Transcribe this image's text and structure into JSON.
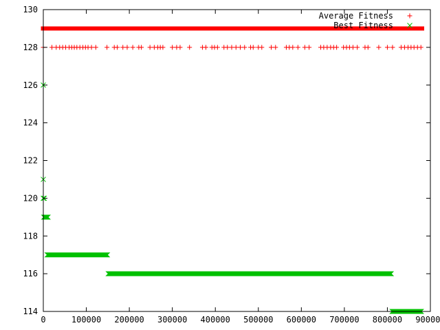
{
  "chart_data": {
    "type": "scatter",
    "title": "",
    "xlabel": "",
    "ylabel": "",
    "xlim": [
      0,
      900000
    ],
    "ylim": [
      114,
      130
    ],
    "x_ticks": [
      0,
      100000,
      200000,
      300000,
      400000,
      500000,
      600000,
      700000,
      800000,
      900000
    ],
    "x_tick_labels": [
      "0",
      "100000",
      "200000",
      "300000",
      "400000",
      "500000",
      "600000",
      "700000",
      "800000",
      "900000"
    ],
    "y_ticks": [
      114,
      116,
      118,
      120,
      122,
      124,
      126,
      128,
      130
    ],
    "y_tick_labels": [
      "114",
      "116",
      "118",
      "120",
      "122",
      "124",
      "126",
      "128",
      "130"
    ],
    "grid": false,
    "legend": "top-right",
    "series": [
      {
        "name": "Average Fitness",
        "marker": "plus",
        "color": "#ff0000",
        "bands": [
          {
            "y": 129,
            "x_from": 0,
            "x_to": 880000,
            "density": "continuous"
          }
        ],
        "points": [
          {
            "x": 0,
            "y": 128
          },
          {
            "x": 20000,
            "y": 128
          },
          {
            "x": 30000,
            "y": 128
          },
          {
            "x": 38000,
            "y": 128
          },
          {
            "x": 45000,
            "y": 128
          },
          {
            "x": 52000,
            "y": 128
          },
          {
            "x": 60000,
            "y": 128
          },
          {
            "x": 66000,
            "y": 128
          },
          {
            "x": 72000,
            "y": 128
          },
          {
            "x": 78000,
            "y": 128
          },
          {
            "x": 85000,
            "y": 128
          },
          {
            "x": 92000,
            "y": 128
          },
          {
            "x": 98000,
            "y": 128
          },
          {
            "x": 104000,
            "y": 128
          },
          {
            "x": 112000,
            "y": 128
          },
          {
            "x": 122000,
            "y": 128
          },
          {
            "x": 148000,
            "y": 128
          },
          {
            "x": 165000,
            "y": 128
          },
          {
            "x": 172000,
            "y": 128
          },
          {
            "x": 185000,
            "y": 128
          },
          {
            "x": 195000,
            "y": 128
          },
          {
            "x": 208000,
            "y": 128
          },
          {
            "x": 222000,
            "y": 128
          },
          {
            "x": 228000,
            "y": 128
          },
          {
            "x": 248000,
            "y": 128
          },
          {
            "x": 258000,
            "y": 128
          },
          {
            "x": 266000,
            "y": 128
          },
          {
            "x": 272000,
            "y": 128
          },
          {
            "x": 278000,
            "y": 128
          },
          {
            "x": 300000,
            "y": 128
          },
          {
            "x": 310000,
            "y": 128
          },
          {
            "x": 318000,
            "y": 128
          },
          {
            "x": 340000,
            "y": 128
          },
          {
            "x": 370000,
            "y": 128
          },
          {
            "x": 378000,
            "y": 128
          },
          {
            "x": 392000,
            "y": 128
          },
          {
            "x": 398000,
            "y": 128
          },
          {
            "x": 405000,
            "y": 128
          },
          {
            "x": 420000,
            "y": 128
          },
          {
            "x": 428000,
            "y": 128
          },
          {
            "x": 438000,
            "y": 128
          },
          {
            "x": 448000,
            "y": 128
          },
          {
            "x": 458000,
            "y": 128
          },
          {
            "x": 468000,
            "y": 128
          },
          {
            "x": 482000,
            "y": 128
          },
          {
            "x": 488000,
            "y": 128
          },
          {
            "x": 500000,
            "y": 128
          },
          {
            "x": 508000,
            "y": 128
          },
          {
            "x": 530000,
            "y": 128
          },
          {
            "x": 540000,
            "y": 128
          },
          {
            "x": 565000,
            "y": 128
          },
          {
            "x": 572000,
            "y": 128
          },
          {
            "x": 580000,
            "y": 128
          },
          {
            "x": 592000,
            "y": 128
          },
          {
            "x": 608000,
            "y": 128
          },
          {
            "x": 618000,
            "y": 128
          },
          {
            "x": 645000,
            "y": 128
          },
          {
            "x": 652000,
            "y": 128
          },
          {
            "x": 660000,
            "y": 128
          },
          {
            "x": 668000,
            "y": 128
          },
          {
            "x": 675000,
            "y": 128
          },
          {
            "x": 682000,
            "y": 128
          },
          {
            "x": 698000,
            "y": 128
          },
          {
            "x": 705000,
            "y": 128
          },
          {
            "x": 712000,
            "y": 128
          },
          {
            "x": 720000,
            "y": 128
          },
          {
            "x": 730000,
            "y": 128
          },
          {
            "x": 748000,
            "y": 128
          },
          {
            "x": 755000,
            "y": 128
          },
          {
            "x": 780000,
            "y": 128
          },
          {
            "x": 800000,
            "y": 128
          },
          {
            "x": 812000,
            "y": 128
          },
          {
            "x": 832000,
            "y": 128
          },
          {
            "x": 840000,
            "y": 128
          },
          {
            "x": 848000,
            "y": 128
          },
          {
            "x": 855000,
            "y": 128
          },
          {
            "x": 862000,
            "y": 128
          },
          {
            "x": 870000,
            "y": 128
          },
          {
            "x": 878000,
            "y": 128
          }
        ]
      },
      {
        "name": "Best Fitness",
        "marker": "cross",
        "color": "#00c000",
        "bands": [
          {
            "y": 119,
            "x_from": 0,
            "x_to": 12000,
            "density": "continuous"
          },
          {
            "y": 117,
            "x_from": 8000,
            "x_to": 150000,
            "density": "continuous"
          },
          {
            "y": 116,
            "x_from": 150000,
            "x_to": 810000,
            "density": "continuous"
          },
          {
            "y": 114,
            "x_from": 810000,
            "x_to": 880000,
            "density": "continuous"
          }
        ],
        "points": [
          {
            "x": 0,
            "y": 126
          },
          {
            "x": 0,
            "y": 121
          },
          {
            "x": 0,
            "y": 120
          },
          {
            "x": 2000,
            "y": 120
          }
        ]
      }
    ]
  }
}
